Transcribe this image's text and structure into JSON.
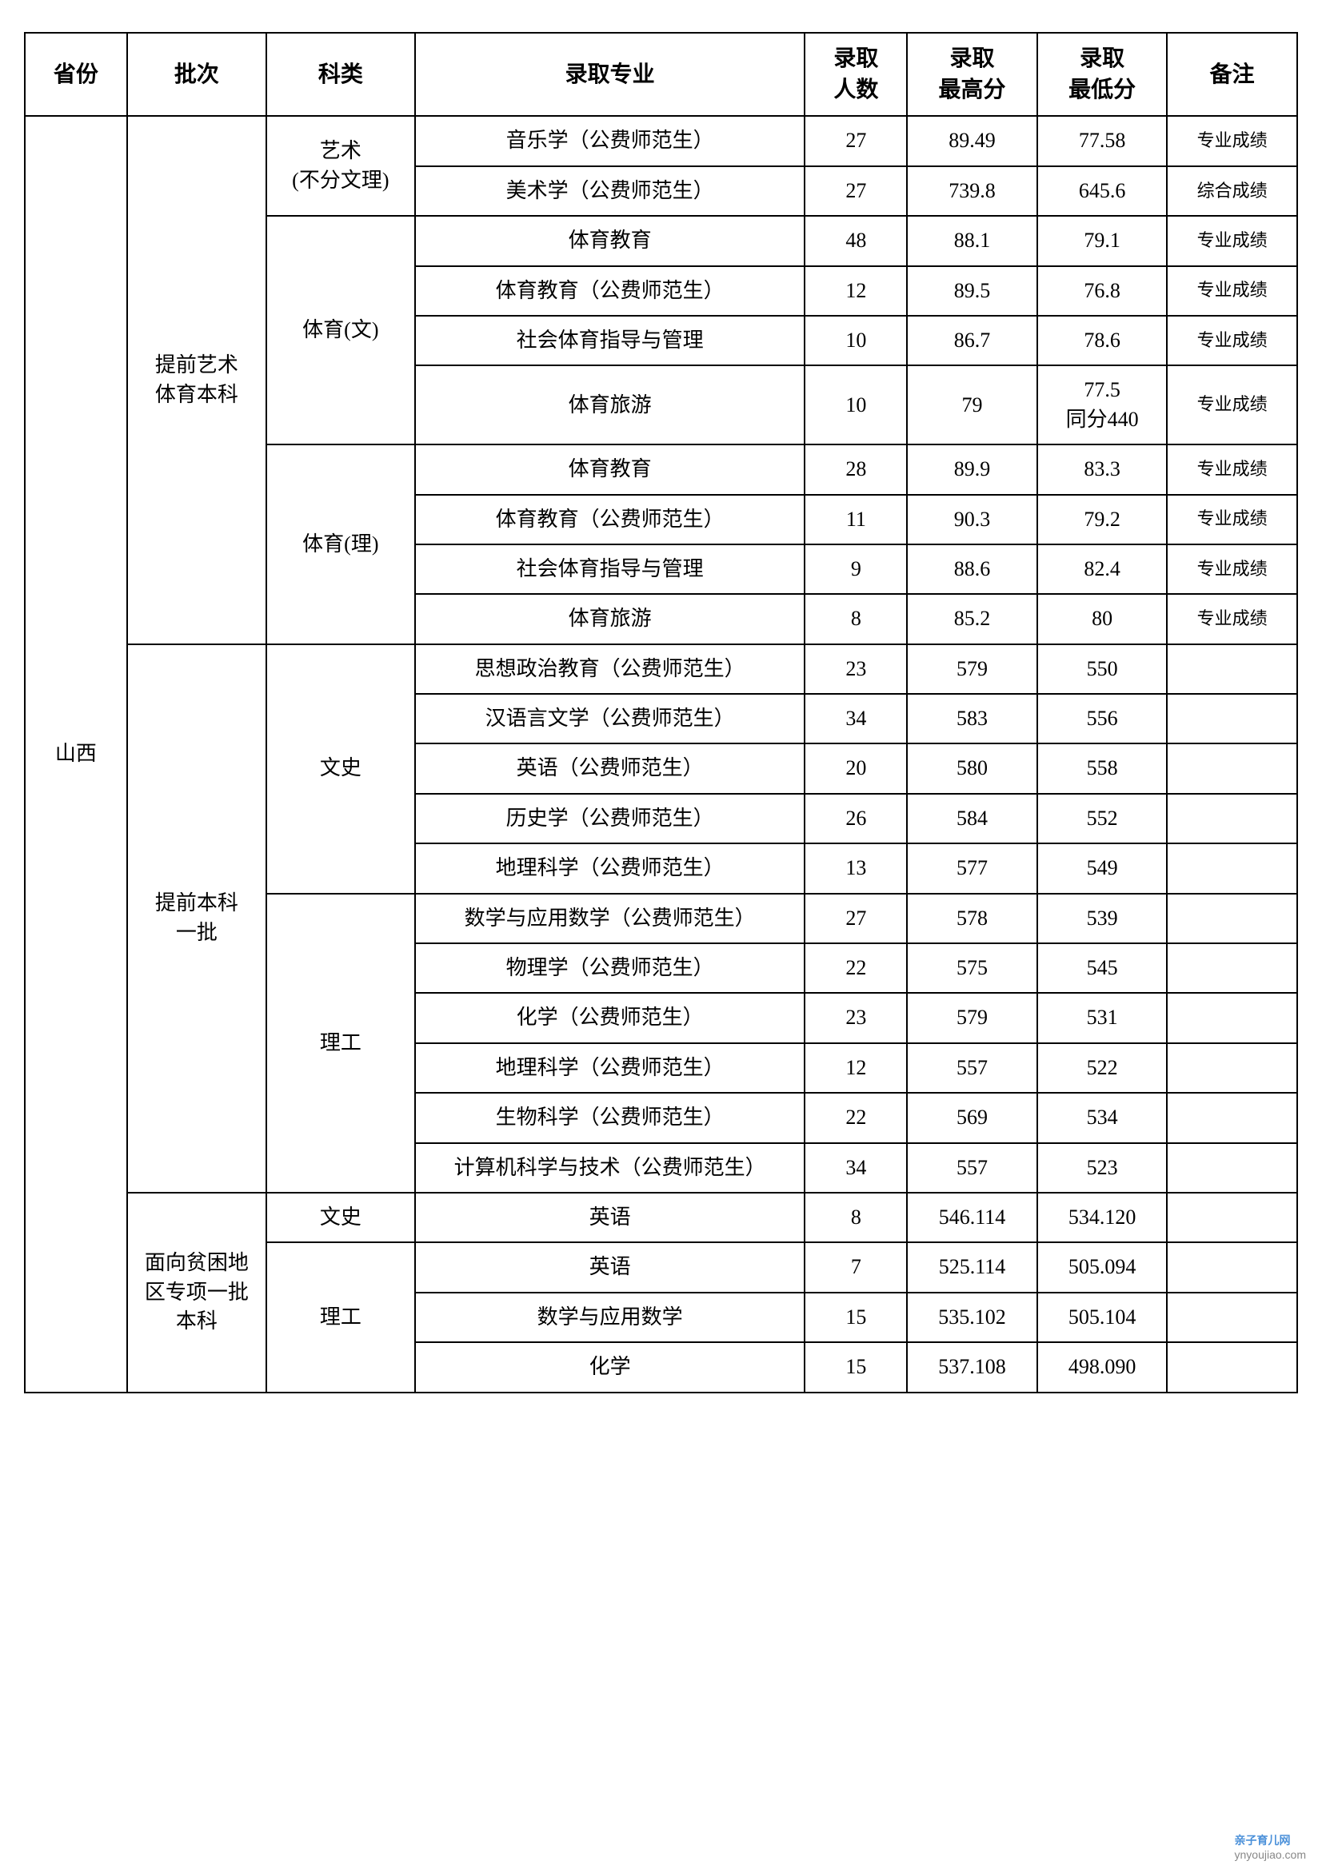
{
  "headers": {
    "province": "省份",
    "batch": "批次",
    "category": "科类",
    "major": "录取专业",
    "count": "录取\n人数",
    "high": "录取\n最高分",
    "low": "录取\n最低分",
    "remark": "备注"
  },
  "province": "山西",
  "batches": [
    {
      "name": "提前艺术\n体育本科",
      "rowspan": 10,
      "categories": [
        {
          "name": "艺术\n(不分文理)",
          "rowspan": 2,
          "rows": [
            {
              "major": "音乐学（公费师范生）",
              "count": "27",
              "high": "89.49",
              "low": "77.58",
              "remark": "专业成绩"
            },
            {
              "major": "美术学（公费师范生）",
              "count": "27",
              "high": "739.8",
              "low": "645.6",
              "remark": "综合成绩"
            }
          ]
        },
        {
          "name": "体育(文)",
          "rowspan": 4,
          "rows": [
            {
              "major": "体育教育",
              "count": "48",
              "high": "88.1",
              "low": "79.1",
              "remark": "专业成绩"
            },
            {
              "major": "体育教育（公费师范生）",
              "count": "12",
              "high": "89.5",
              "low": "76.8",
              "remark": "专业成绩"
            },
            {
              "major": "社会体育指导与管理",
              "count": "10",
              "high": "86.7",
              "low": "78.6",
              "remark": "专业成绩"
            },
            {
              "major": "体育旅游",
              "count": "10",
              "high": "79",
              "low": "77.5\n同分440",
              "remark": "专业成绩"
            }
          ]
        },
        {
          "name": "体育(理)",
          "rowspan": 4,
          "rows": [
            {
              "major": "体育教育",
              "count": "28",
              "high": "89.9",
              "low": "83.3",
              "remark": "专业成绩"
            },
            {
              "major": "体育教育（公费师范生）",
              "count": "11",
              "high": "90.3",
              "low": "79.2",
              "remark": "专业成绩"
            },
            {
              "major": "社会体育指导与管理",
              "count": "9",
              "high": "88.6",
              "low": "82.4",
              "remark": "专业成绩"
            },
            {
              "major": "体育旅游",
              "count": "8",
              "high": "85.2",
              "low": "80",
              "remark": "专业成绩"
            }
          ]
        }
      ]
    },
    {
      "name": "提前本科\n一批",
      "rowspan": 11,
      "categories": [
        {
          "name": "文史",
          "rowspan": 5,
          "rows": [
            {
              "major": "思想政治教育（公费师范生）",
              "count": "23",
              "high": "579",
              "low": "550",
              "remark": ""
            },
            {
              "major": "汉语言文学（公费师范生）",
              "count": "34",
              "high": "583",
              "low": "556",
              "remark": ""
            },
            {
              "major": "英语（公费师范生）",
              "count": "20",
              "high": "580",
              "low": "558",
              "remark": ""
            },
            {
              "major": "历史学（公费师范生）",
              "count": "26",
              "high": "584",
              "low": "552",
              "remark": ""
            },
            {
              "major": "地理科学（公费师范生）",
              "count": "13",
              "high": "577",
              "low": "549",
              "remark": ""
            }
          ]
        },
        {
          "name": "理工",
          "rowspan": 6,
          "rows": [
            {
              "major": "数学与应用数学（公费师范生）",
              "count": "27",
              "high": "578",
              "low": "539",
              "remark": ""
            },
            {
              "major": "物理学（公费师范生）",
              "count": "22",
              "high": "575",
              "low": "545",
              "remark": ""
            },
            {
              "major": "化学（公费师范生）",
              "count": "23",
              "high": "579",
              "low": "531",
              "remark": ""
            },
            {
              "major": "地理科学（公费师范生）",
              "count": "12",
              "high": "557",
              "low": "522",
              "remark": ""
            },
            {
              "major": "生物科学（公费师范生）",
              "count": "22",
              "high": "569",
              "low": "534",
              "remark": ""
            },
            {
              "major": "计算机科学与技术（公费师范生）",
              "count": "34",
              "high": "557",
              "low": "523",
              "remark": ""
            }
          ]
        }
      ]
    },
    {
      "name": "面向贫困地\n区专项一批\n本科",
      "rowspan": 4,
      "categories": [
        {
          "name": "文史",
          "rowspan": 1,
          "rows": [
            {
              "major": "英语",
              "count": "8",
              "high": "546.114",
              "low": "534.120",
              "remark": ""
            }
          ]
        },
        {
          "name": "理工",
          "rowspan": 3,
          "rows": [
            {
              "major": "英语",
              "count": "7",
              "high": "525.114",
              "low": "505.094",
              "remark": ""
            },
            {
              "major": "数学与应用数学",
              "count": "15",
              "high": "535.102",
              "low": "505.104",
              "remark": ""
            },
            {
              "major": "化学",
              "count": "15",
              "high": "537.108",
              "low": "498.090",
              "remark": ""
            }
          ]
        }
      ]
    }
  ],
  "totalRows": 25,
  "watermark": {
    "title": "亲子育儿网",
    "url": "ynyoujiao.com"
  },
  "styling": {
    "border_color": "#000000",
    "border_width": 2,
    "background_color": "#ffffff",
    "header_fontsize": 28,
    "cell_fontsize": 26,
    "remark_fontsize": 22,
    "font_family": "SimSun"
  }
}
